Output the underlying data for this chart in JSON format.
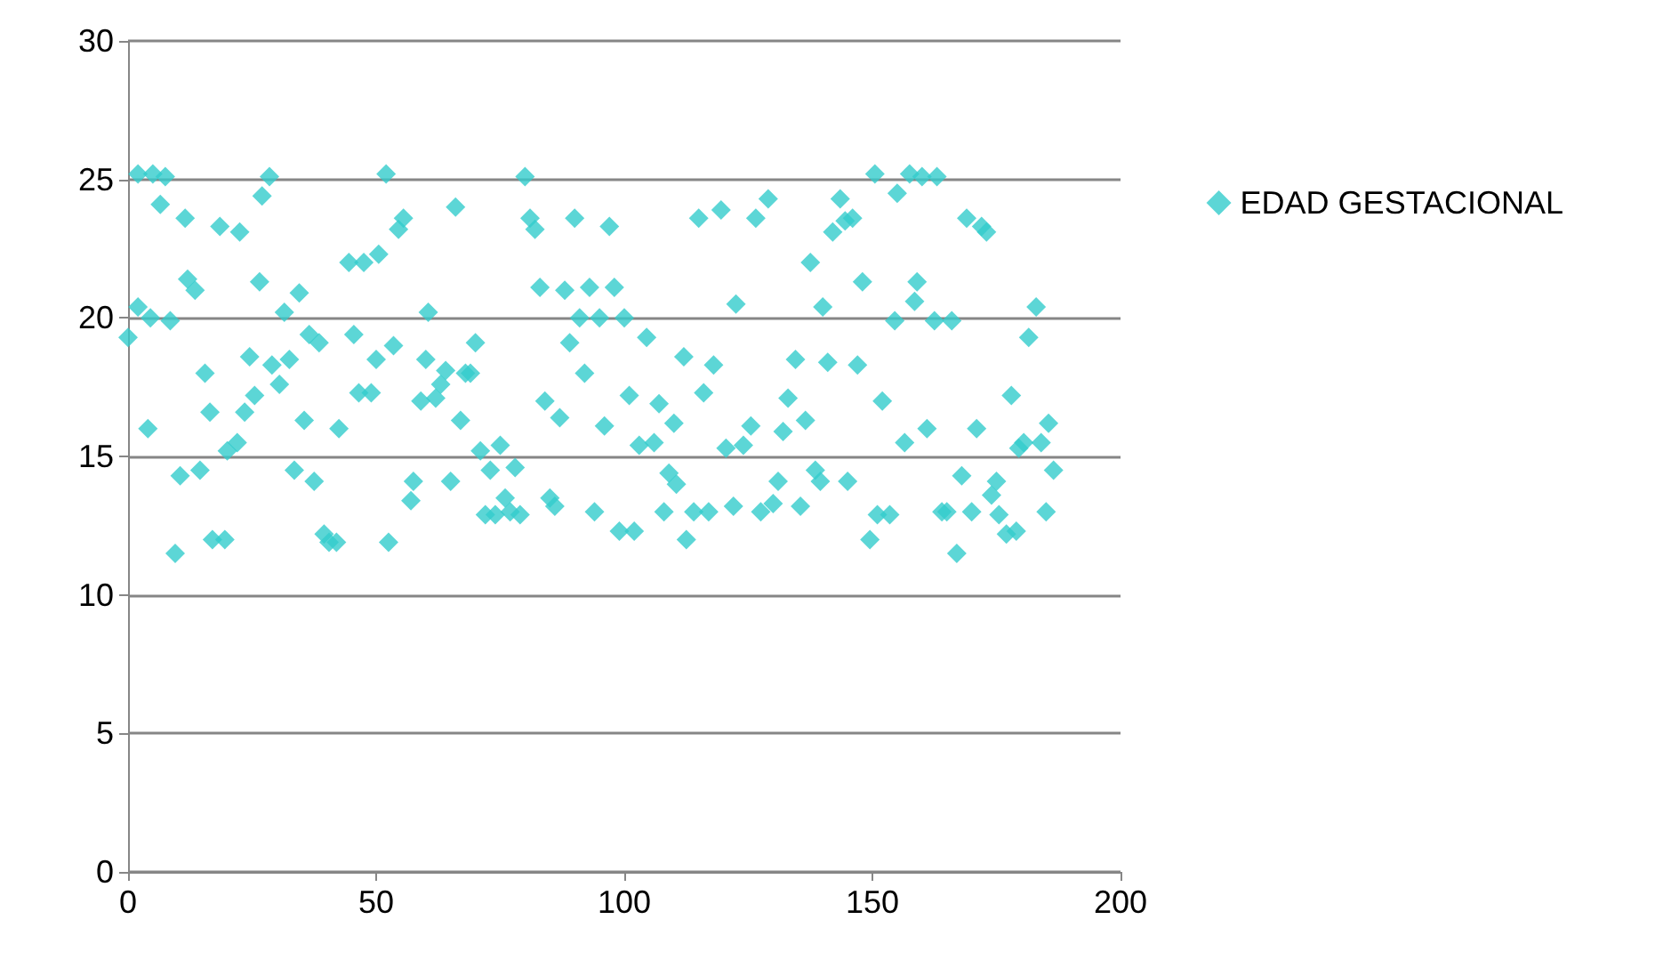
{
  "chart_data": {
    "type": "scatter",
    "xlim": [
      0,
      200
    ],
    "xticks": [
      0,
      50,
      100,
      150,
      200
    ],
    "ylim": [
      0,
      30
    ],
    "yticks": [
      0,
      5,
      10,
      15,
      20,
      25,
      30
    ],
    "grid": "y",
    "legend": "right",
    "marker": "diamond",
    "series": [
      {
        "name": "EDAD GESTACIONAL",
        "color": "#33cccc",
        "x": [
          0,
          2,
          2,
          4,
          4.5,
          5,
          6.5,
          7.5,
          8.5,
          9.5,
          10.5,
          11.5,
          12,
          13.5,
          14.5,
          15.5,
          16.5,
          17,
          18.5,
          19.5,
          20,
          22,
          22.5,
          23.5,
          24.5,
          25.5,
          26.5,
          27,
          28.5,
          29,
          30.5,
          31.5,
          32.5,
          33.5,
          34.5,
          35.5,
          36.5,
          37.5,
          38.5,
          39.5,
          40.5,
          42,
          42.5,
          44.5,
          45.5,
          46.5,
          47.5,
          49,
          50,
          50.5,
          52,
          52.5,
          53.5,
          54.5,
          55.5,
          57,
          57.5,
          59,
          60,
          60.5,
          62,
          63,
          64,
          65,
          66,
          67,
          68,
          69,
          70,
          71,
          72,
          73,
          74,
          75,
          76,
          77,
          78,
          79,
          80,
          81,
          82,
          83,
          84,
          85,
          86,
          87,
          88,
          89,
          90,
          91,
          92,
          93,
          94,
          95,
          96,
          97,
          98,
          99,
          100,
          101,
          102,
          103,
          104.5,
          106,
          107,
          108,
          109,
          110,
          110.5,
          112,
          112.5,
          114,
          115,
          116,
          117,
          118,
          119.5,
          120.5,
          122,
          122.5,
          124,
          125.5,
          126.5,
          127.5,
          129,
          130,
          131,
          132,
          133,
          134.5,
          135.5,
          136.5,
          137.5,
          138.5,
          139.5,
          140,
          141,
          142,
          143.5,
          144.5,
          145,
          146,
          147,
          148,
          149.5,
          150.5,
          151,
          152,
          153.5,
          154.5,
          155,
          156.5,
          157.5,
          158.5,
          159,
          160,
          161,
          162.5,
          163,
          164,
          165,
          166,
          167,
          168,
          169,
          170,
          171,
          172,
          173,
          174,
          175,
          175.5,
          177,
          178,
          179,
          179.5,
          180.5,
          181.5,
          183,
          184,
          185,
          185.5,
          186.5
        ],
        "values": [
          19.3,
          20.4,
          25.2,
          16,
          20,
          25.2,
          24.1,
          25.1,
          19.9,
          11.5,
          14.3,
          23.6,
          21.4,
          21,
          14.5,
          18,
          16.6,
          12,
          23.3,
          12,
          15.2,
          15.5,
          23.1,
          16.6,
          18.6,
          17.2,
          21.3,
          24.4,
          25.1,
          18.3,
          17.6,
          20.2,
          18.5,
          14.5,
          20.9,
          16.3,
          19.4,
          14.1,
          19.1,
          12.2,
          11.9,
          11.9,
          16,
          22,
          19.4,
          17.3,
          22,
          17.3,
          18.5,
          22.3,
          25.2,
          11.9,
          19,
          23.2,
          23.6,
          13.4,
          14.1,
          17,
          18.5,
          20.2,
          17.1,
          17.6,
          18.1,
          14.1,
          24,
          16.3,
          18,
          18,
          19.1,
          15.2,
          12.9,
          14.5,
          12.9,
          15.4,
          13.5,
          13,
          14.6,
          12.9,
          25.1,
          23.6,
          23.2,
          21.1,
          17,
          13.5,
          13.2,
          16.4,
          21,
          19.1,
          23.6,
          20,
          18,
          21.1,
          13,
          20,
          16.1,
          23.3,
          21.1,
          12.3,
          20,
          17.2,
          12.3,
          15.4,
          19.3,
          15.5,
          16.9,
          13,
          14.4,
          16.2,
          14,
          18.6,
          12,
          13,
          23.6,
          17.3,
          13,
          18.3,
          23.9,
          15.3,
          13.2,
          20.5,
          15.4,
          16.1,
          23.6,
          13,
          24.3,
          13.3,
          14.1,
          15.9,
          17.1,
          18.5,
          13.2,
          16.3,
          22,
          14.5,
          14.1,
          20.4,
          18.4,
          23.1,
          24.3,
          23.5,
          14.1,
          23.6,
          18.3,
          21.3,
          12,
          25.2,
          12.9,
          17,
          12.9,
          19.9,
          24.5,
          15.5,
          25.2,
          20.6,
          21.3,
          25.1,
          16,
          19.9,
          25.1,
          13,
          13,
          19.9,
          11.5,
          14.3,
          23.6,
          13,
          16,
          23.3,
          23.1,
          13.6,
          14.1,
          12.9,
          12.2,
          17.2,
          12.3,
          15.3,
          15.5,
          19.3,
          20.4,
          15.5,
          13,
          16.2,
          14.5
        ]
      }
    ]
  }
}
